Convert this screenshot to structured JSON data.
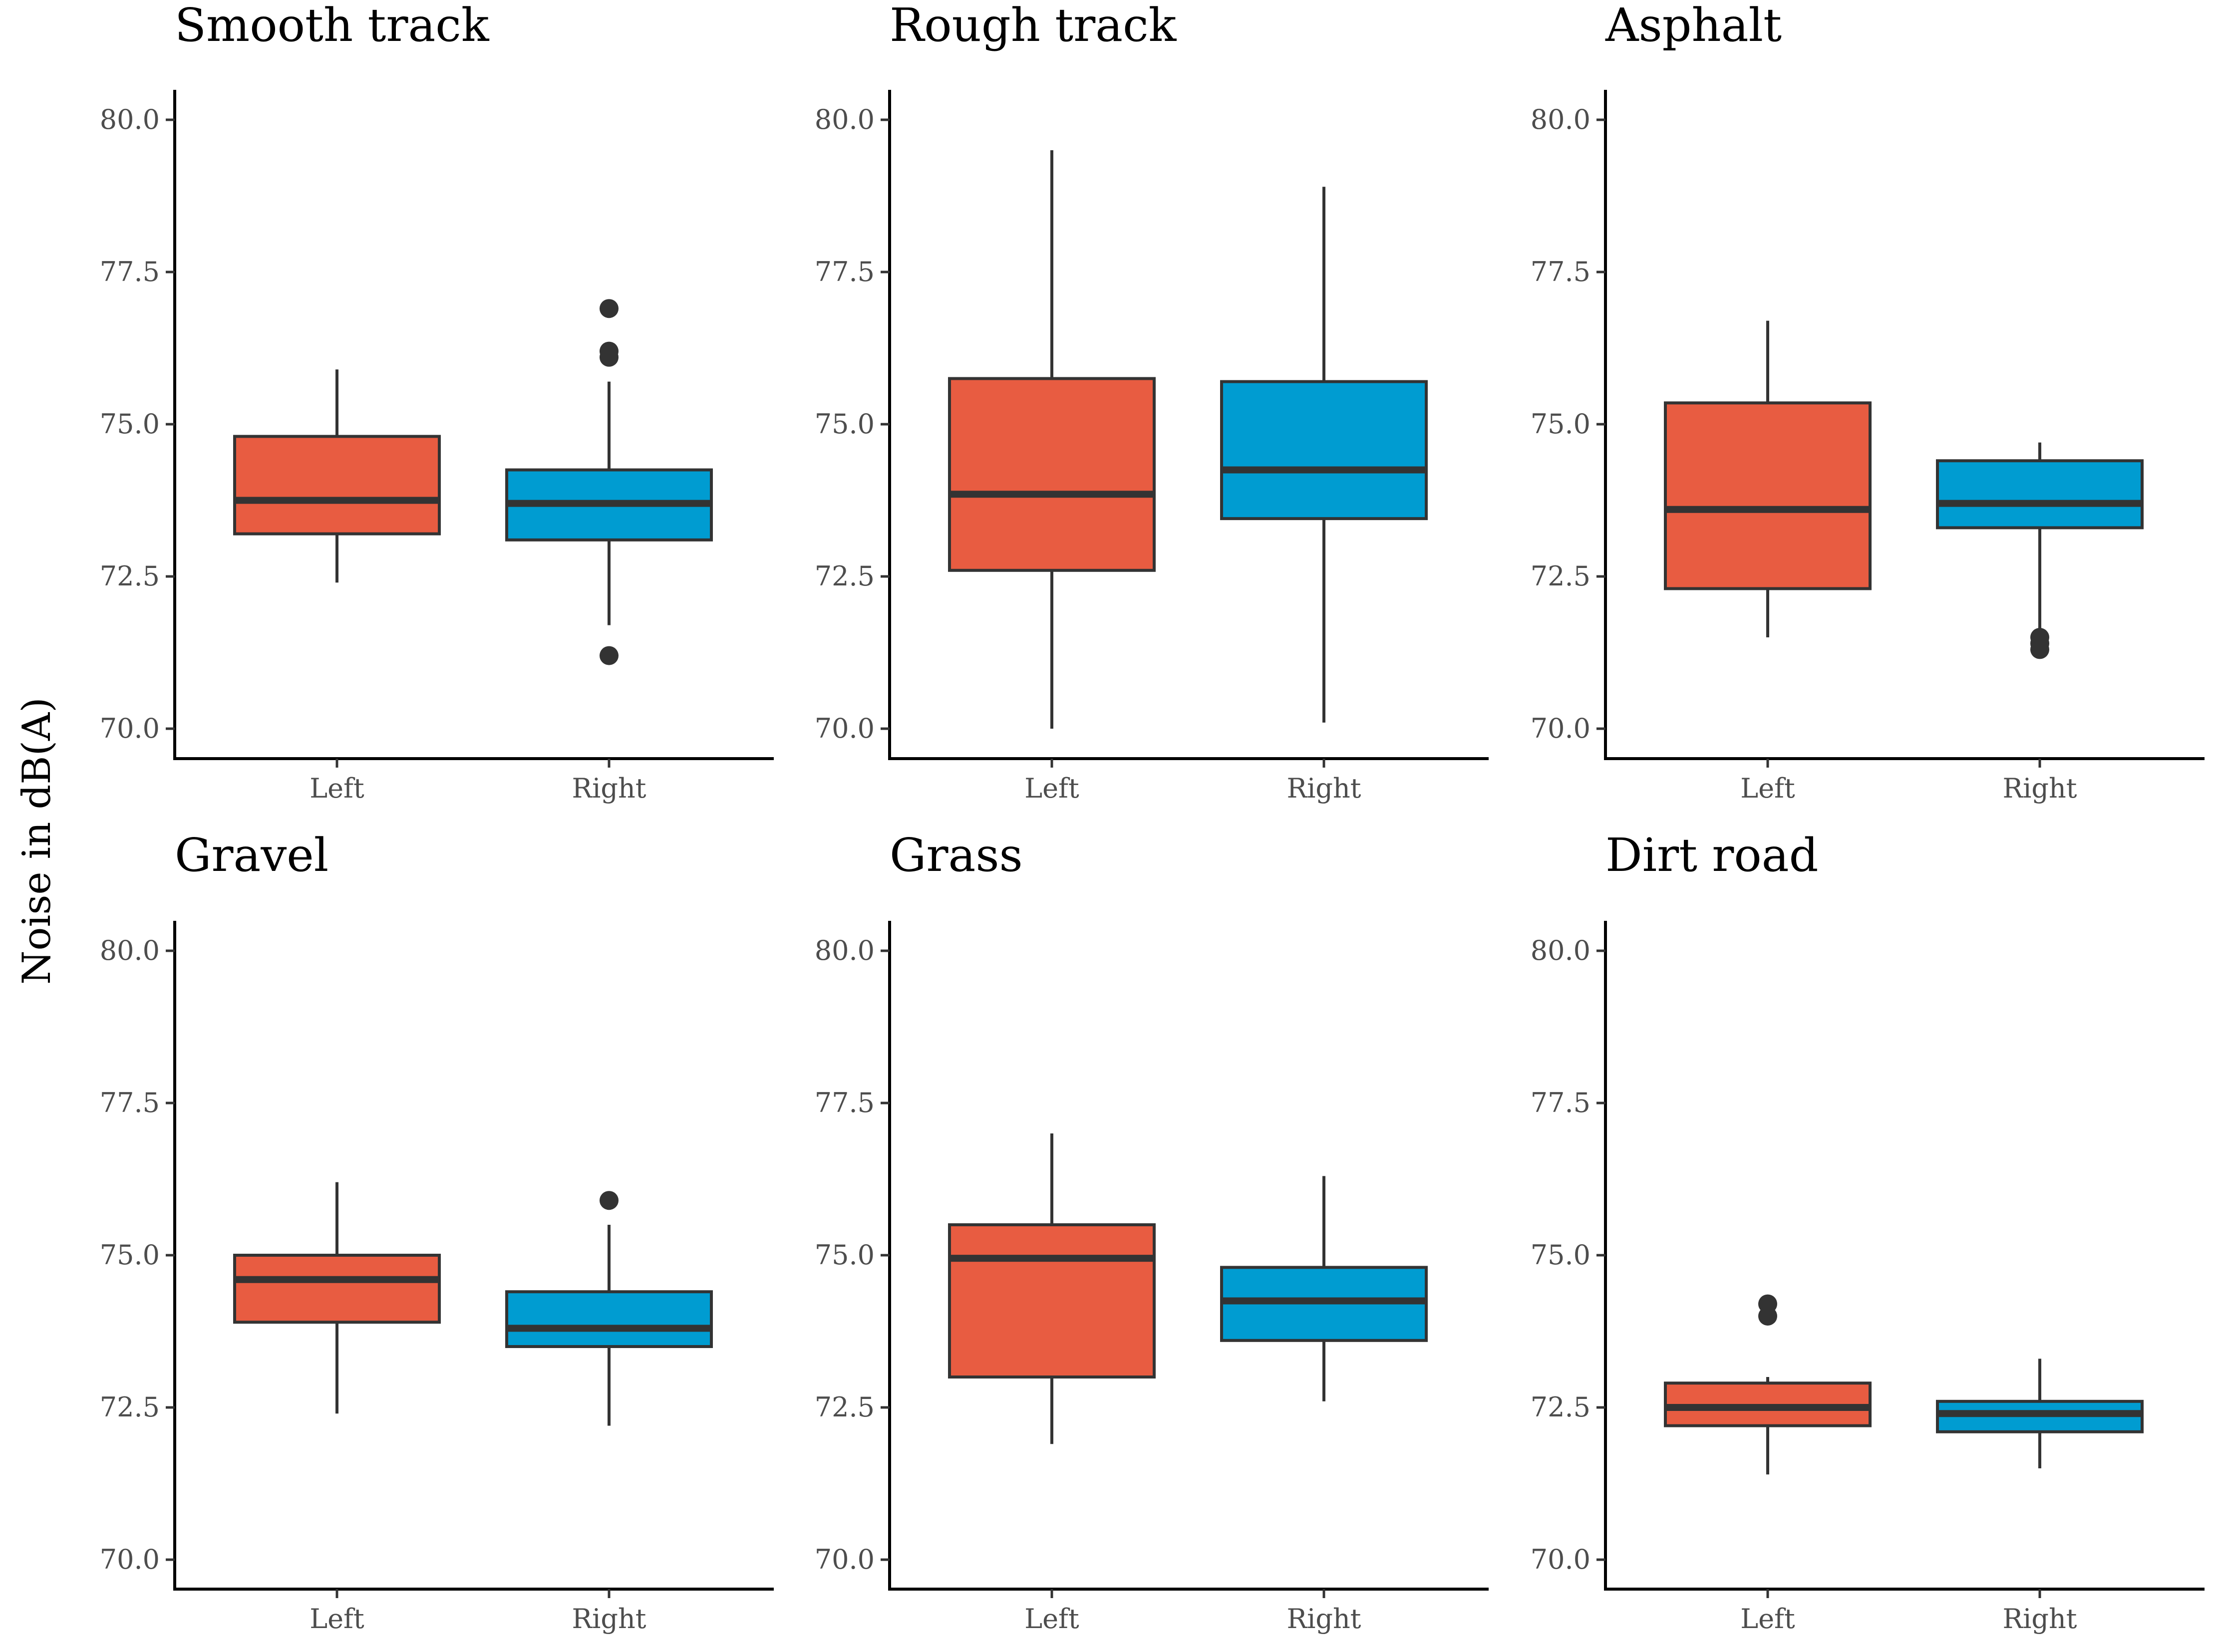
{
  "chart_data": {
    "type": "boxplot",
    "ylabel": "Noise in dB(A)",
    "ylim": [
      69.5,
      80.5
    ],
    "yticks": [
      70.0,
      72.5,
      75.0,
      77.5,
      80.0
    ],
    "ytick_labels": [
      "70.0",
      "72.5",
      "75.0",
      "77.5",
      "80.0"
    ],
    "categories": [
      "Left",
      "Right"
    ],
    "colors": {
      "Left": "#E85C41",
      "Right": "#009CD1"
    },
    "panels": [
      {
        "title": "Smooth track",
        "boxes": [
          {
            "category": "Left",
            "whisker_low": 72.4,
            "q1": 73.2,
            "median": 73.75,
            "q3": 74.8,
            "whisker_high": 75.9,
            "outliers": []
          },
          {
            "category": "Right",
            "whisker_low": 71.7,
            "q1": 73.1,
            "median": 73.7,
            "q3": 74.25,
            "whisker_high": 75.7,
            "outliers": [
              76.9,
              76.2,
              76.1,
              71.2
            ]
          }
        ]
      },
      {
        "title": "Rough track",
        "boxes": [
          {
            "category": "Left",
            "whisker_low": 70.0,
            "q1": 72.6,
            "median": 73.85,
            "q3": 75.75,
            "whisker_high": 79.5,
            "outliers": []
          },
          {
            "category": "Right",
            "whisker_low": 70.1,
            "q1": 73.45,
            "median": 74.25,
            "q3": 75.7,
            "whisker_high": 78.9,
            "outliers": []
          }
        ]
      },
      {
        "title": "Asphalt",
        "boxes": [
          {
            "category": "Left",
            "whisker_low": 71.5,
            "q1": 72.3,
            "median": 73.6,
            "q3": 75.35,
            "whisker_high": 76.7,
            "outliers": []
          },
          {
            "category": "Right",
            "whisker_low": 71.5,
            "q1": 73.3,
            "median": 73.7,
            "q3": 74.4,
            "whisker_high": 74.7,
            "outliers": [
              71.5,
              71.4,
              71.3
            ]
          }
        ]
      },
      {
        "title": "Gravel",
        "boxes": [
          {
            "category": "Left",
            "whisker_low": 72.4,
            "q1": 73.9,
            "median": 74.6,
            "q3": 75.0,
            "whisker_high": 76.2,
            "outliers": []
          },
          {
            "category": "Right",
            "whisker_low": 72.2,
            "q1": 73.5,
            "median": 73.8,
            "q3": 74.4,
            "whisker_high": 75.5,
            "outliers": [
              75.9
            ]
          }
        ]
      },
      {
        "title": "Grass",
        "boxes": [
          {
            "category": "Left",
            "whisker_low": 71.9,
            "q1": 73.0,
            "median": 74.95,
            "q3": 75.5,
            "whisker_high": 77.0,
            "outliers": []
          },
          {
            "category": "Right",
            "whisker_low": 72.6,
            "q1": 73.6,
            "median": 74.25,
            "q3": 74.8,
            "whisker_high": 76.3,
            "outliers": []
          }
        ]
      },
      {
        "title": "Dirt road",
        "boxes": [
          {
            "category": "Left",
            "whisker_low": 71.4,
            "q1": 72.2,
            "median": 72.5,
            "q3": 72.9,
            "whisker_high": 73.0,
            "outliers": [
              74.2,
              74.0
            ]
          },
          {
            "category": "Right",
            "whisker_low": 71.5,
            "q1": 72.1,
            "median": 72.4,
            "q3": 72.6,
            "whisker_high": 73.3,
            "outliers": []
          }
        ]
      }
    ]
  }
}
